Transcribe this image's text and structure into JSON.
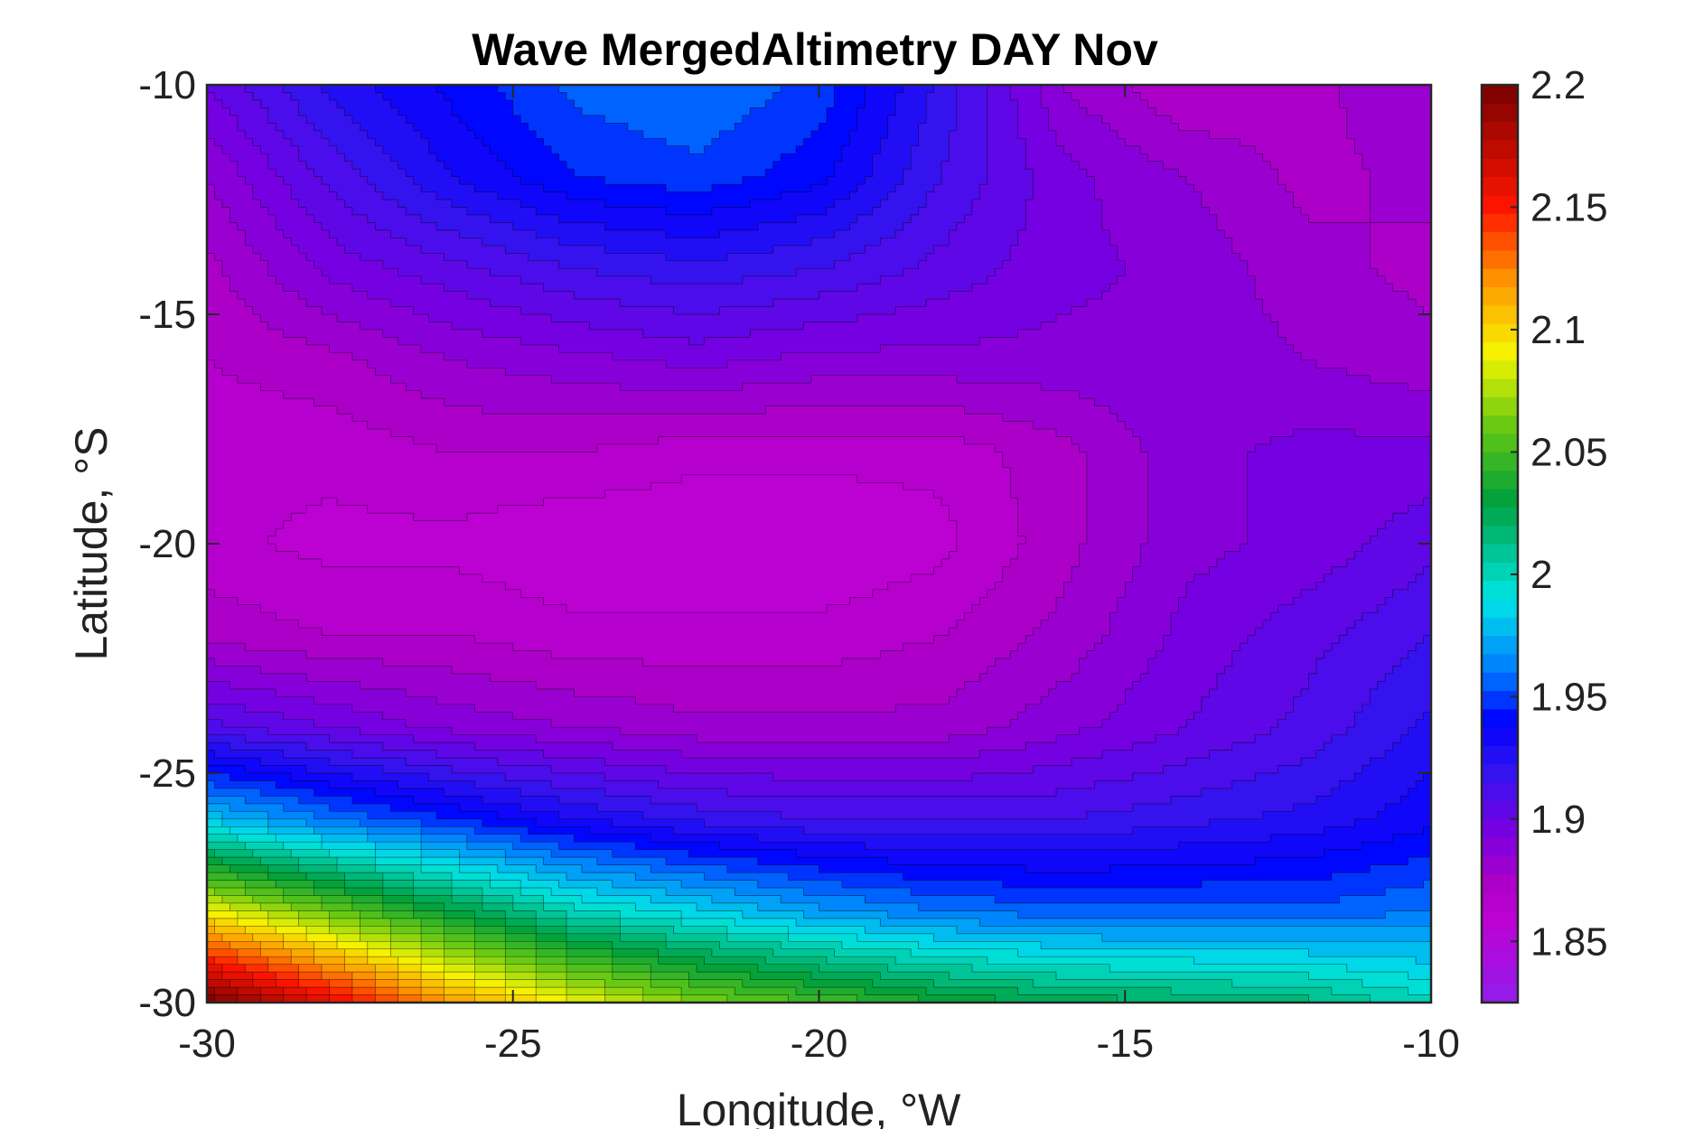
{
  "chart_data": {
    "type": "heatmap",
    "subtype": "filled-contour",
    "title": "Wave MergedAltimetry DAY Nov",
    "xlabel": "Longitude, °W",
    "ylabel": "Latitude, °S",
    "xlim": [
      -30,
      -10
    ],
    "ylim": [
      -30,
      -10
    ],
    "xticks": [
      -30,
      -25,
      -20,
      -15,
      -10
    ],
    "yticks": [
      -10,
      -15,
      -20,
      -25,
      -30
    ],
    "xtick_labels": [
      "-30",
      "-25",
      "-20",
      "-15",
      "-10"
    ],
    "ytick_labels": [
      "-10",
      "-15",
      "-20",
      "-25",
      "-30"
    ],
    "colorbar": {
      "range": [
        1.825,
        2.2
      ],
      "ticks": [
        1.85,
        1.9,
        1.95,
        2.0,
        2.05,
        2.1,
        2.15,
        2.2
      ],
      "tick_labels": [
        "1.85",
        "1.9",
        "1.95",
        "2",
        "2.05",
        "2.1",
        "2.15",
        "2.2"
      ],
      "colormap": "jet-like (violet-blue-cyan-green-yellow-red-darkred)",
      "placement": "right"
    },
    "grid": false,
    "contour_lines": true,
    "x": [
      -30,
      -28,
      -26,
      -24,
      -22,
      -20,
      -18,
      -16,
      -14,
      -12,
      -10
    ],
    "y": [
      -10,
      -12,
      -14,
      -16,
      -18,
      -20,
      -22,
      -24,
      -26,
      -28,
      -30
    ],
    "z": [
      [
        1.9,
        1.925,
        1.94,
        1.955,
        1.96,
        1.95,
        1.92,
        1.885,
        1.87,
        1.875,
        1.885
      ],
      [
        1.885,
        1.91,
        1.93,
        1.945,
        1.95,
        1.94,
        1.915,
        1.895,
        1.885,
        1.875,
        1.88
      ],
      [
        1.875,
        1.895,
        1.905,
        1.915,
        1.92,
        1.915,
        1.905,
        1.895,
        1.89,
        1.88,
        1.875
      ],
      [
        1.87,
        1.875,
        1.885,
        1.89,
        1.895,
        1.89,
        1.89,
        1.89,
        1.89,
        1.885,
        1.88
      ],
      [
        1.865,
        1.865,
        1.87,
        1.87,
        1.865,
        1.865,
        1.865,
        1.875,
        1.89,
        1.895,
        1.895
      ],
      [
        1.865,
        1.86,
        1.86,
        1.855,
        1.855,
        1.855,
        1.86,
        1.875,
        1.89,
        1.895,
        1.905
      ],
      [
        1.875,
        1.87,
        1.87,
        1.865,
        1.865,
        1.865,
        1.87,
        1.88,
        1.895,
        1.905,
        1.915
      ],
      [
        1.91,
        1.9,
        1.89,
        1.885,
        1.88,
        1.88,
        1.88,
        1.89,
        1.9,
        1.91,
        1.925
      ],
      [
        1.98,
        1.96,
        1.945,
        1.93,
        1.92,
        1.915,
        1.915,
        1.915,
        1.92,
        1.925,
        1.935
      ],
      [
        2.09,
        2.06,
        2.03,
        2.0,
        1.985,
        1.97,
        1.96,
        1.955,
        1.955,
        1.955,
        1.96
      ],
      [
        2.2,
        2.16,
        2.12,
        2.09,
        2.065,
        2.05,
        2.035,
        2.025,
        2.02,
        2.015,
        2.0
      ]
    ]
  }
}
